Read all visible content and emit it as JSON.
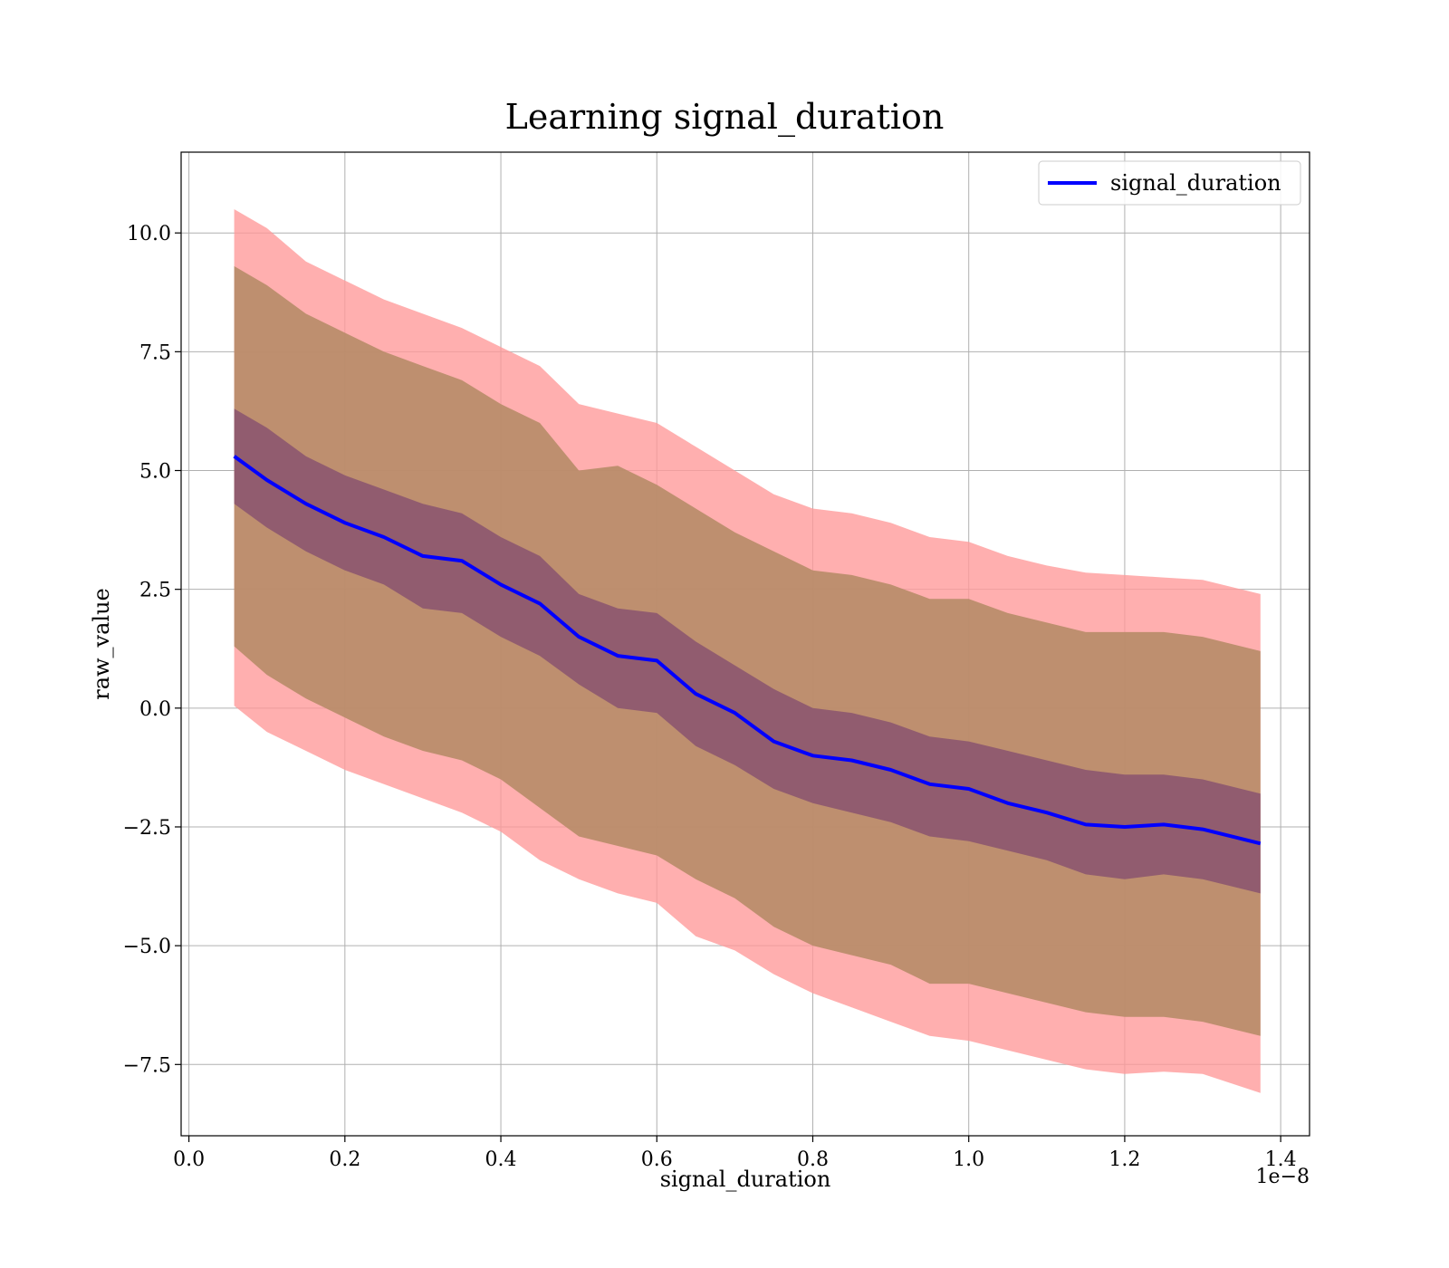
{
  "chart_data": {
    "type": "line",
    "title": "Learning signal_duration",
    "xlabel": "signal_duration",
    "ylabel": "raw_value",
    "x_offset_label": "1e−8",
    "xlim": [
      -0.01,
      1.437
    ],
    "ylim": [
      -9.0,
      11.7
    ],
    "x_ticks": [
      0.0,
      0.2,
      0.4,
      0.6,
      0.8,
      1.0,
      1.2,
      1.4
    ],
    "x_tick_labels": [
      "0.0",
      "0.2",
      "0.4",
      "0.6",
      "0.8",
      "1.0",
      "1.2",
      "1.4"
    ],
    "y_ticks": [
      -7.5,
      -5.0,
      -2.5,
      0.0,
      2.5,
      5.0,
      7.5,
      10.0
    ],
    "y_tick_labels": [
      "−7.5",
      "−5.0",
      "−2.5",
      "0.0",
      "2.5",
      "5.0",
      "7.5",
      "10.0"
    ],
    "grid": true,
    "legend": {
      "position": "top-right",
      "entries": [
        "signal_duration"
      ]
    },
    "colors": {
      "line": "#0000ff",
      "outer_band": "#ff9999",
      "middle_band": "#b38a64",
      "inner_band": "#8a5470",
      "grid": "#b0b0b0"
    },
    "x": [
      0.058,
      0.1,
      0.15,
      0.2,
      0.25,
      0.3,
      0.35,
      0.4,
      0.45,
      0.5,
      0.55,
      0.6,
      0.65,
      0.7,
      0.75,
      0.8,
      0.85,
      0.9,
      0.95,
      1.0,
      1.05,
      1.1,
      1.15,
      1.2,
      1.25,
      1.3,
      1.374
    ],
    "series": [
      {
        "name": "signal_duration",
        "values": [
          5.3,
          4.8,
          4.3,
          3.9,
          3.6,
          3.2,
          3.1,
          2.6,
          2.2,
          1.5,
          1.1,
          1.0,
          0.3,
          -0.1,
          -0.7,
          -1.0,
          -1.1,
          -1.3,
          -1.6,
          -1.7,
          -2.0,
          -2.2,
          -2.45,
          -2.5,
          -2.45,
          -2.55,
          -2.85
        ]
      }
    ],
    "bands": [
      {
        "upper": [
          10.5,
          10.1,
          9.4,
          9.0,
          8.6,
          8.3,
          8.0,
          7.6,
          7.2,
          6.4,
          6.2,
          6.0,
          5.5,
          5.0,
          4.5,
          4.2,
          4.1,
          3.9,
          3.6,
          3.5,
          3.2,
          3.0,
          2.85,
          2.8,
          2.75,
          2.7,
          2.4
        ],
        "lower": [
          0.05,
          -0.5,
          -0.9,
          -1.3,
          -1.6,
          -1.9,
          -2.2,
          -2.6,
          -3.2,
          -3.6,
          -3.9,
          -4.1,
          -4.8,
          -5.1,
          -5.6,
          -6.0,
          -6.3,
          -6.6,
          -6.9,
          -7.0,
          -7.2,
          -7.4,
          -7.6,
          -7.7,
          -7.65,
          -7.7,
          -8.1
        ]
      },
      {
        "upper": [
          9.3,
          8.9,
          8.3,
          7.9,
          7.5,
          7.2,
          6.9,
          6.4,
          6.0,
          5.0,
          5.1,
          4.7,
          4.2,
          3.7,
          3.3,
          2.9,
          2.8,
          2.6,
          2.3,
          2.3,
          2.0,
          1.8,
          1.6,
          1.6,
          1.6,
          1.5,
          1.2
        ],
        "lower": [
          1.3,
          0.7,
          0.2,
          -0.2,
          -0.6,
          -0.9,
          -1.1,
          -1.5,
          -2.1,
          -2.7,
          -2.9,
          -3.1,
          -3.6,
          -4.0,
          -4.6,
          -5.0,
          -5.2,
          -5.4,
          -5.8,
          -5.8,
          -6.0,
          -6.2,
          -6.4,
          -6.5,
          -6.5,
          -6.6,
          -6.9
        ]
      },
      {
        "upper": [
          6.3,
          5.9,
          5.3,
          4.9,
          4.6,
          4.3,
          4.1,
          3.6,
          3.2,
          2.4,
          2.1,
          2.0,
          1.4,
          0.9,
          0.4,
          0.0,
          -0.1,
          -0.3,
          -0.6,
          -0.7,
          -0.9,
          -1.1,
          -1.3,
          -1.4,
          -1.4,
          -1.5,
          -1.8
        ],
        "lower": [
          4.3,
          3.8,
          3.3,
          2.9,
          2.6,
          2.1,
          2.0,
          1.5,
          1.1,
          0.5,
          0.0,
          -0.1,
          -0.8,
          -1.2,
          -1.7,
          -2.0,
          -2.2,
          -2.4,
          -2.7,
          -2.8,
          -3.0,
          -3.2,
          -3.5,
          -3.6,
          -3.5,
          -3.6,
          -3.9
        ]
      }
    ]
  }
}
